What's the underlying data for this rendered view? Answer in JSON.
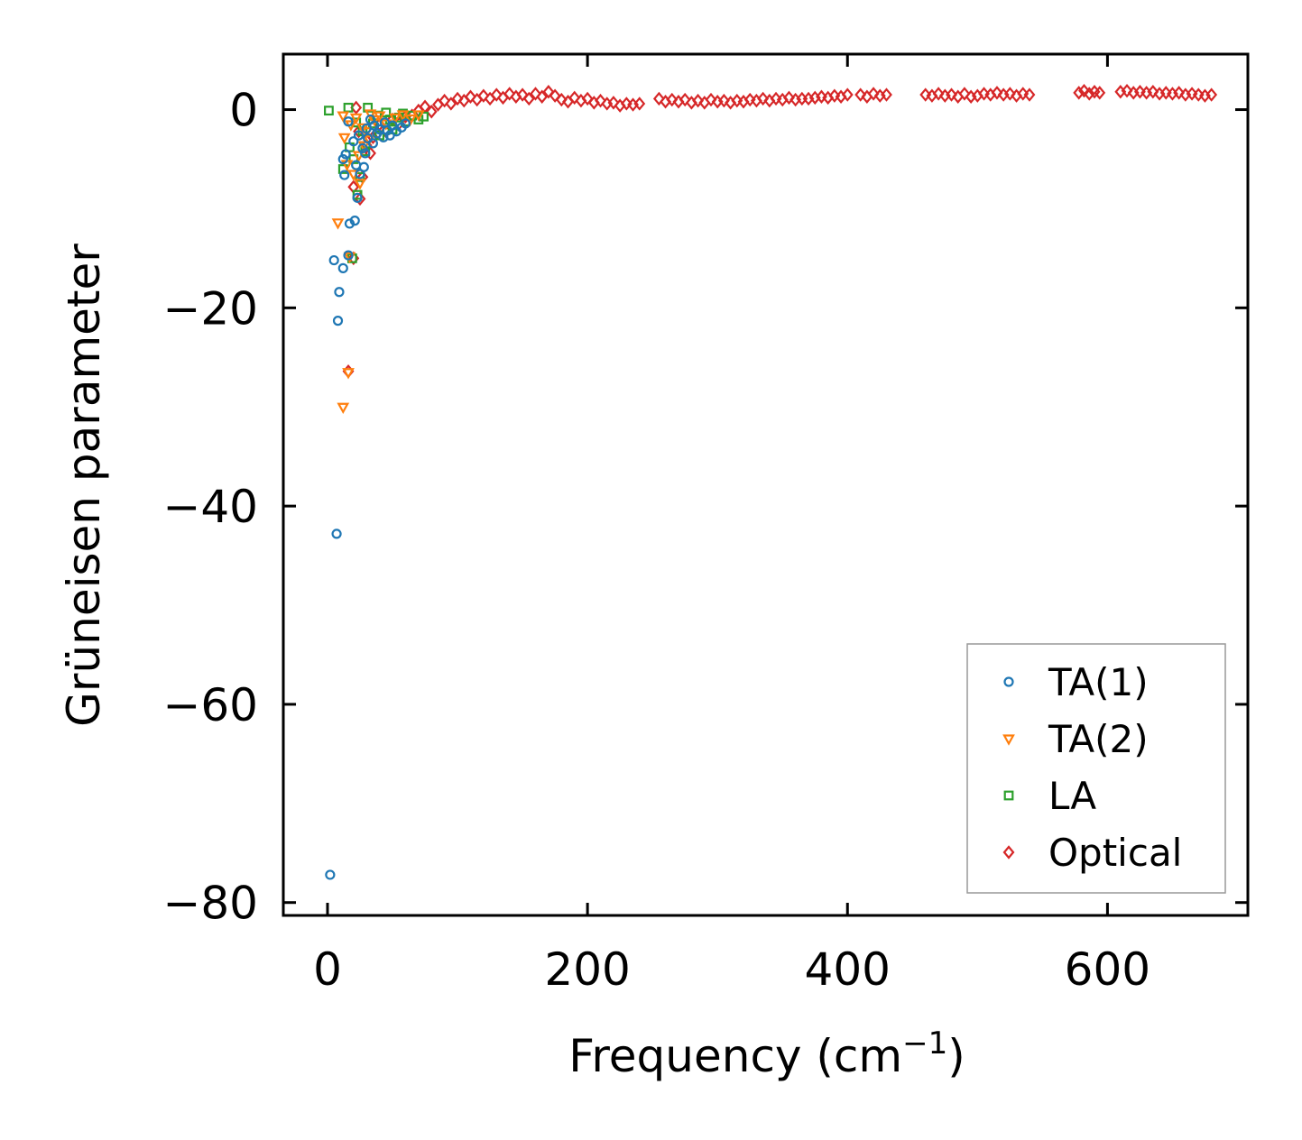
{
  "chart_data": {
    "type": "scatter",
    "title": "",
    "xlabel": "Frequency (cm",
    "xlabel_sup": "−1",
    "xlabel_close": ")",
    "ylabel": "Grüneisen parameter",
    "xlim": [
      -34,
      708
    ],
    "ylim": [
      -81.3,
      5.6
    ],
    "xticks": [
      0,
      200,
      400,
      600
    ],
    "xtick_labels": [
      "0",
      "200",
      "400",
      "600"
    ],
    "yticks": [
      0,
      -20,
      -40,
      -60,
      -80
    ],
    "ytick_labels": [
      "0",
      "−20",
      "−40",
      "−60",
      "−80"
    ],
    "grid": false,
    "legend_position": "lower-right",
    "series": [
      {
        "name": "TA(1)",
        "marker": "circle",
        "color": "#1f77b4",
        "points": [
          [
            2,
            -77.2
          ],
          [
            7,
            -42.8
          ],
          [
            8,
            -21.3
          ],
          [
            9,
            -18.4
          ],
          [
            5,
            -15.2
          ],
          [
            12,
            -16.0
          ],
          [
            16,
            -14.7
          ],
          [
            17,
            -11.5
          ],
          [
            21,
            -11.2
          ],
          [
            12,
            -5.0
          ],
          [
            14,
            -4.5
          ],
          [
            13,
            -6.6
          ],
          [
            16,
            -1.2
          ],
          [
            20,
            -3.2
          ],
          [
            22,
            -5.6
          ],
          [
            23,
            -8.9
          ],
          [
            25,
            -6.5
          ],
          [
            27,
            -3.9
          ],
          [
            28,
            -5.8
          ],
          [
            24,
            -2.6
          ],
          [
            30,
            -1.9
          ],
          [
            33,
            -1.0
          ],
          [
            35,
            -3.4
          ],
          [
            38,
            -2.4
          ],
          [
            40,
            -2.0
          ],
          [
            43,
            -2.8
          ],
          [
            46,
            -2.1
          ],
          [
            50,
            -1.6
          ],
          [
            53,
            -2.2
          ],
          [
            57,
            -1.8
          ],
          [
            60,
            -1.4
          ],
          [
            29,
            -4.4
          ],
          [
            31,
            -2.9
          ],
          [
            36,
            -1.6
          ],
          [
            44,
            -1.3
          ],
          [
            48,
            -2.6
          ]
        ]
      },
      {
        "name": "TA(2)",
        "marker": "triangle-down",
        "color": "#ff7f0e",
        "points": [
          [
            12,
            -30.0
          ],
          [
            16,
            -26.5
          ],
          [
            8,
            -11.4
          ],
          [
            17,
            -14.8
          ],
          [
            13,
            -2.8
          ],
          [
            15,
            -5.5
          ],
          [
            18,
            -1.5
          ],
          [
            22,
            -0.8
          ],
          [
            25,
            -7.4
          ],
          [
            12,
            -0.6
          ],
          [
            28,
            -3.6
          ],
          [
            30,
            -2.2
          ],
          [
            33,
            -0.4
          ],
          [
            36,
            -1.0
          ],
          [
            40,
            -0.6
          ],
          [
            45,
            -1.4
          ],
          [
            52,
            -0.8
          ],
          [
            58,
            -0.5
          ],
          [
            20,
            -6.5
          ],
          [
            24,
            -4.6
          ],
          [
            27,
            -1.8
          ],
          [
            32,
            -3.0
          ],
          [
            64,
            -0.9
          ],
          [
            70,
            -0.5
          ]
        ]
      },
      {
        "name": "LA",
        "marker": "square",
        "color": "#2ca02c",
        "points": [
          [
            1,
            -0.1
          ],
          [
            16,
            0.2
          ],
          [
            31,
            0.2
          ],
          [
            12,
            -6.0
          ],
          [
            19,
            -15.0
          ],
          [
            17,
            -3.8
          ],
          [
            20,
            -5.0
          ],
          [
            23,
            -8.6
          ],
          [
            25,
            -6.8
          ],
          [
            29,
            -4.2
          ],
          [
            35,
            -1.4
          ],
          [
            45,
            -0.3
          ],
          [
            22,
            -1.3
          ],
          [
            40,
            -2.6
          ],
          [
            48,
            -1.0
          ],
          [
            55,
            -0.8
          ],
          [
            60,
            -1.2
          ],
          [
            65,
            -0.6
          ],
          [
            70,
            -1.0
          ],
          [
            74,
            -0.7
          ],
          [
            50,
            -2.0
          ],
          [
            38,
            -0.6
          ],
          [
            27,
            -2.2
          ],
          [
            58,
            -0.4
          ]
        ]
      },
      {
        "name": "Optical",
        "marker": "diamond",
        "color": "#d62728",
        "points": [
          [
            16,
            -26.4
          ],
          [
            20,
            -15.0
          ],
          [
            25,
            -9.0
          ],
          [
            22,
            0.2
          ],
          [
            27,
            -6.8
          ],
          [
            30,
            -3.6
          ],
          [
            33,
            -4.4
          ],
          [
            20,
            -7.8
          ],
          [
            24,
            -2.2
          ],
          [
            35,
            -2.8
          ],
          [
            40,
            -1.5
          ],
          [
            45,
            -2.2
          ],
          [
            50,
            -1.0
          ],
          [
            55,
            -1.4
          ],
          [
            60,
            -0.7
          ],
          [
            65,
            -0.6
          ],
          [
            70,
            -0.1
          ],
          [
            75,
            0.3
          ],
          [
            80,
            -0.2
          ],
          [
            85,
            0.5
          ],
          [
            90,
            0.9
          ],
          [
            95,
            0.6
          ],
          [
            100,
            1.1
          ],
          [
            105,
            0.9
          ],
          [
            110,
            1.3
          ],
          [
            115,
            1.0
          ],
          [
            120,
            1.4
          ],
          [
            125,
            1.1
          ],
          [
            130,
            1.5
          ],
          [
            135,
            1.2
          ],
          [
            140,
            1.6
          ],
          [
            145,
            1.3
          ],
          [
            150,
            1.5
          ],
          [
            155,
            1.1
          ],
          [
            160,
            1.6
          ],
          [
            165,
            1.3
          ],
          [
            170,
            1.8
          ],
          [
            175,
            1.4
          ],
          [
            180,
            1.0
          ],
          [
            185,
            0.8
          ],
          [
            190,
            1.2
          ],
          [
            195,
            0.9
          ],
          [
            200,
            1.1
          ],
          [
            205,
            0.7
          ],
          [
            210,
            0.9
          ],
          [
            215,
            0.6
          ],
          [
            220,
            0.7
          ],
          [
            225,
            0.4
          ],
          [
            230,
            0.6
          ],
          [
            235,
            0.5
          ],
          [
            240,
            0.6
          ],
          [
            255,
            1.1
          ],
          [
            260,
            0.8
          ],
          [
            265,
            1.0
          ],
          [
            270,
            0.8
          ],
          [
            275,
            1.0
          ],
          [
            280,
            0.7
          ],
          [
            285,
            0.9
          ],
          [
            290,
            0.7
          ],
          [
            295,
            1.0
          ],
          [
            300,
            0.8
          ],
          [
            305,
            0.9
          ],
          [
            310,
            0.7
          ],
          [
            315,
            0.9
          ],
          [
            320,
            0.8
          ],
          [
            325,
            1.0
          ],
          [
            330,
            0.9
          ],
          [
            335,
            1.1
          ],
          [
            340,
            0.9
          ],
          [
            345,
            1.1
          ],
          [
            350,
            1.0
          ],
          [
            355,
            1.2
          ],
          [
            360,
            1.0
          ],
          [
            365,
            1.1
          ],
          [
            370,
            1.1
          ],
          [
            375,
            1.2
          ],
          [
            380,
            1.3
          ],
          [
            385,
            1.2
          ],
          [
            390,
            1.4
          ],
          [
            395,
            1.3
          ],
          [
            400,
            1.5
          ],
          [
            410,
            1.5
          ],
          [
            415,
            1.3
          ],
          [
            420,
            1.6
          ],
          [
            425,
            1.4
          ],
          [
            430,
            1.5
          ],
          [
            460,
            1.5
          ],
          [
            465,
            1.4
          ],
          [
            470,
            1.6
          ],
          [
            475,
            1.4
          ],
          [
            480,
            1.5
          ],
          [
            485,
            1.3
          ],
          [
            490,
            1.6
          ],
          [
            495,
            1.3
          ],
          [
            500,
            1.4
          ],
          [
            505,
            1.6
          ],
          [
            510,
            1.5
          ],
          [
            515,
            1.7
          ],
          [
            520,
            1.5
          ],
          [
            525,
            1.6
          ],
          [
            530,
            1.4
          ],
          [
            535,
            1.6
          ],
          [
            540,
            1.5
          ],
          [
            578,
            1.7
          ],
          [
            582,
            1.9
          ],
          [
            586,
            1.6
          ],
          [
            590,
            1.8
          ],
          [
            594,
            1.7
          ],
          [
            610,
            1.8
          ],
          [
            615,
            1.9
          ],
          [
            620,
            1.7
          ],
          [
            625,
            1.8
          ],
          [
            630,
            1.7
          ],
          [
            635,
            1.8
          ],
          [
            640,
            1.6
          ],
          [
            645,
            1.7
          ],
          [
            650,
            1.6
          ],
          [
            655,
            1.7
          ],
          [
            660,
            1.5
          ],
          [
            665,
            1.6
          ],
          [
            670,
            1.5
          ],
          [
            675,
            1.4
          ],
          [
            680,
            1.5
          ]
        ]
      }
    ]
  }
}
